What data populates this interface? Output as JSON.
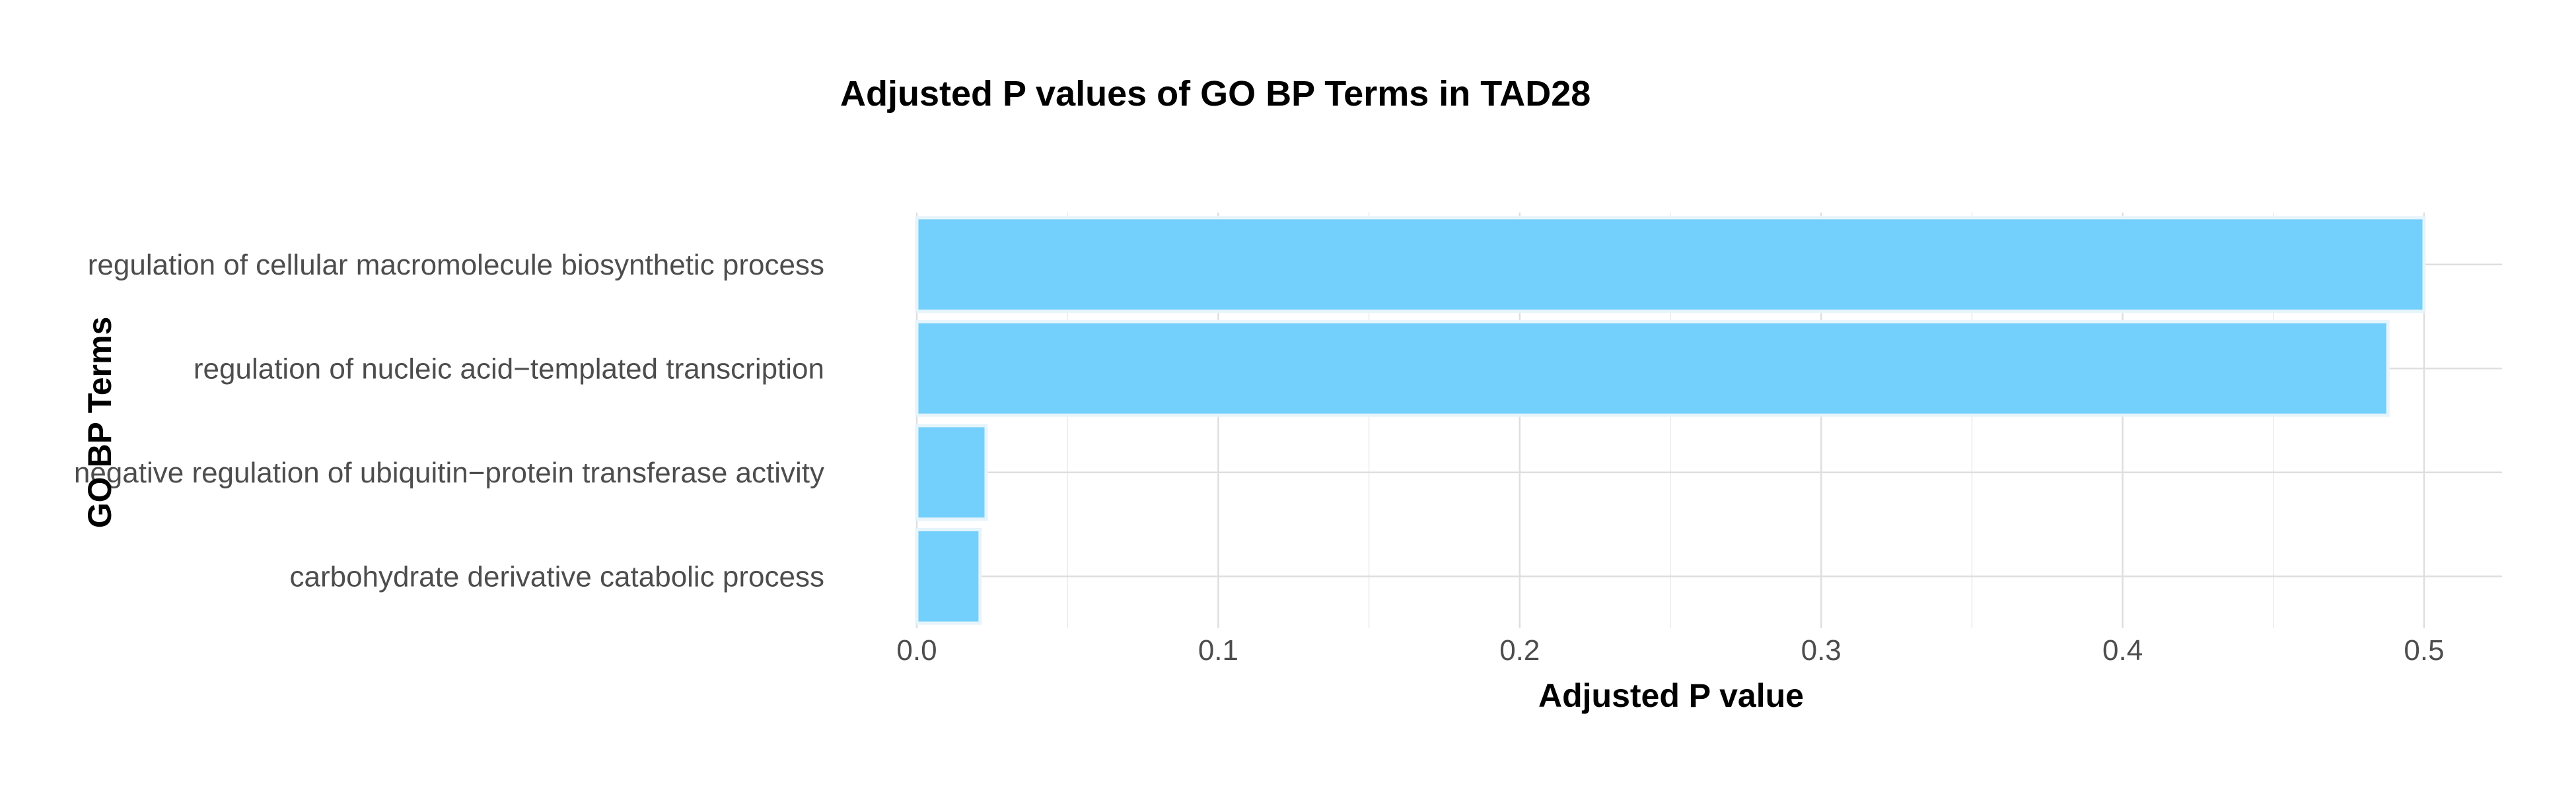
{
  "chart_data": {
    "type": "bar",
    "orientation": "horizontal",
    "title": "Adjusted P values of GO BP Terms in TAD28",
    "xlabel": "Adjusted P value",
    "ylabel": "GO BP Terms",
    "categories": [
      "regulation of cellular macromolecule biosynthetic process",
      "regulation of nucleic acid−templated transcription",
      "negative regulation of ubiquitin−protein transferase activity",
      "carbohydrate derivative catabolic process"
    ],
    "values": [
      0.5,
      0.488,
      0.023,
      0.021
    ],
    "xlim": [
      0,
      0.5
    ],
    "xticks": [
      0,
      0.1,
      0.2,
      0.3,
      0.4,
      0.5
    ],
    "xtick_labels": [
      "0.0",
      "0.1",
      "0.2",
      "0.3",
      "0.4",
      "0.5"
    ],
    "bar_color": "#73cffb",
    "grid": true,
    "legend": "none"
  }
}
